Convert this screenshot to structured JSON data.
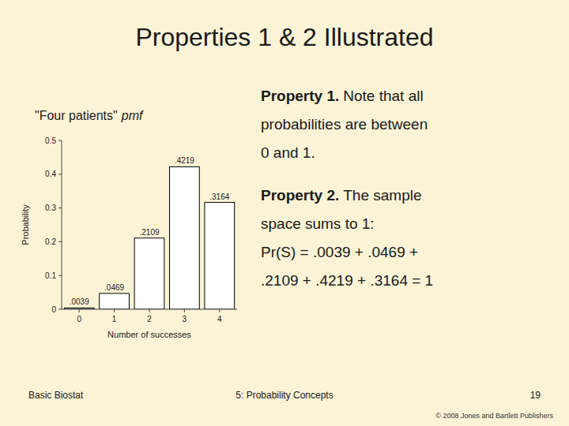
{
  "chart_data": {
    "type": "bar",
    "title": "Properties 1 & 2 Illustrated",
    "categories": [
      "0",
      "1",
      "2",
      "3",
      "4"
    ],
    "values": [
      0.0039,
      0.0469,
      0.2109,
      0.4219,
      0.3164
    ],
    "value_labels": [
      ".0039",
      ".0469",
      ".2109",
      ".4219",
      ".3164"
    ],
    "data_labels": true,
    "color": "#ffffff",
    "x_label": "Number of successes",
    "y_label": "Probability",
    "ylim": [
      0,
      0.5
    ],
    "yticks": [
      0,
      0.1,
      0.2,
      0.3,
      0.4,
      0.5
    ],
    "grid": false,
    "annotations": [
      "\"Four patients\"",
      "pmf",
      "Property 1.",
      "Note that all",
      "probabilities are between",
      "0 and 1.",
      "Property 2.",
      "The sample",
      "space sums to 1:",
      "Pr(S) = .0039 + .0469 +",
      ".2109 + .4219 + .3164 = 1",
      "Basic Biostat",
      "5: Probability Concepts",
      "19",
      "© 2008 Jones and Bartlett Publishers"
    ]
  }
}
